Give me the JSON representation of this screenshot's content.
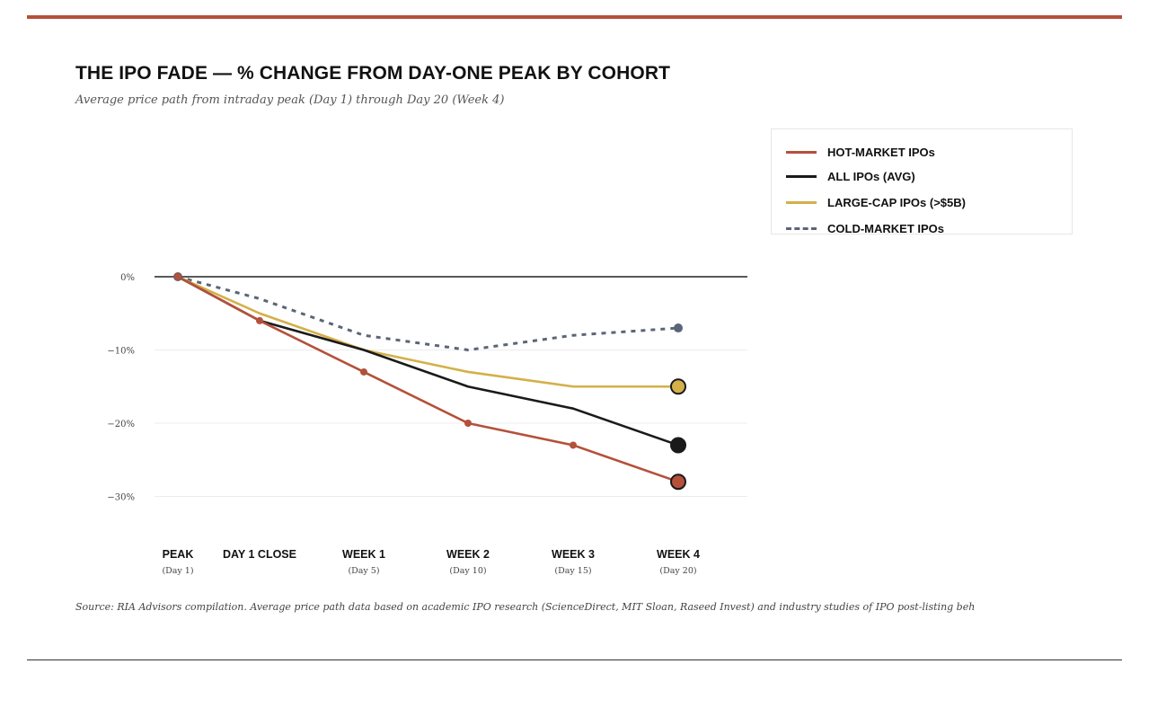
{
  "title": "THE IPO FADE — % CHANGE FROM DAY-ONE PEAK BY COHORT",
  "subtitle": "Average price path from intraday peak (Day 1) through Day 20 (Week 4)",
  "source": "Source: RIA Advisors compilation. Average price path data based on academic IPO research (ScienceDirect, MIT Sloan, Raseed Invest) and industry studies of IPO post-listing beh",
  "legend": [
    {
      "label": "HOT-MARKET IPOs",
      "color": "#b5503a",
      "style": "solid"
    },
    {
      "label": "ALL IPOs (AVG)",
      "color": "#1a1a1a",
      "style": "solid"
    },
    {
      "label": "LARGE-CAP IPOs (>$5B)",
      "color": "#d4b04a",
      "style": "solid"
    },
    {
      "label": "COLD-MARKET IPOs",
      "color": "#5b6577",
      "style": "dashed"
    }
  ],
  "chart_data": {
    "type": "line",
    "title": "THE IPO FADE — % CHANGE FROM DAY-ONE PEAK BY COHORT",
    "subtitle": "Average price path from intraday peak (Day 1) through Day 20 (Week 4)",
    "x": [
      {
        "label": "PEAK",
        "sub": "(Day 1)"
      },
      {
        "label": "DAY 1 CLOSE",
        "sub": ""
      },
      {
        "label": "WEEK 1",
        "sub": "(Day 5)"
      },
      {
        "label": "WEEK 2",
        "sub": "(Day 10)"
      },
      {
        "label": "WEEK 3",
        "sub": "(Day 15)"
      },
      {
        "label": "WEEK 4",
        "sub": "(Day 20)"
      }
    ],
    "y_ticks": [
      {
        "value": 0,
        "label": "0%"
      },
      {
        "value": -10,
        "label": "−10%"
      },
      {
        "value": -20,
        "label": "−20%"
      },
      {
        "value": -30,
        "label": "−30%"
      }
    ],
    "ylim": [
      -30,
      0
    ],
    "grid": true,
    "legend_position": "top-right",
    "series": [
      {
        "name": "HOT-MARKET IPOs",
        "color": "#b5503a",
        "style": "solid",
        "values": [
          0,
          -6,
          -13,
          -20,
          -23,
          -28
        ]
      },
      {
        "name": "ALL IPOs (AVG)",
        "color": "#1a1a1a",
        "style": "solid",
        "values": [
          0,
          -6,
          -10,
          -15,
          -18,
          -23
        ]
      },
      {
        "name": "LARGE-CAP IPOs (>$5B)",
        "color": "#d4b04a",
        "style": "solid",
        "values": [
          0,
          -5,
          -10,
          -13,
          -15,
          -15
        ]
      },
      {
        "name": "COLD-MARKET IPOs",
        "color": "#5b6577",
        "style": "dashed",
        "values": [
          0,
          -3,
          -8,
          -10,
          -8,
          -7
        ]
      }
    ]
  }
}
